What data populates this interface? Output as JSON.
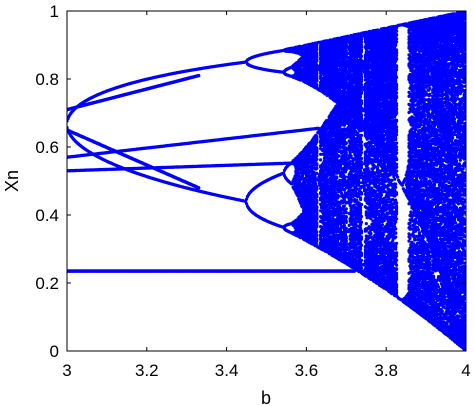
{
  "chart_data": {
    "type": "scatter",
    "title": "",
    "xlabel": "b",
    "ylabel": "Xn",
    "xlim": [
      3,
      4
    ],
    "ylim": [
      0,
      1
    ],
    "x_ticks": [
      3,
      3.2,
      3.4,
      3.6,
      3.8,
      4
    ],
    "x_tick_labels": [
      "3",
      "3.2",
      "3.4",
      "3.6",
      "3.8",
      "4"
    ],
    "y_ticks": [
      0,
      0.2,
      0.4,
      0.6,
      0.8,
      1
    ],
    "y_tick_labels": [
      "0",
      "0.2",
      "0.4",
      "0.6",
      "0.8",
      "1"
    ],
    "grid": false,
    "legend": "none",
    "marker_color": "#0000ff",
    "series": [
      {
        "values_description_none": true,
        "points": [
          [
            3.0,
            0.235
          ],
          [
            3.05,
            0.235
          ],
          [
            3.1,
            0.235
          ],
          [
            3.15,
            0.235
          ],
          [
            3.2,
            0.235
          ],
          [
            3.25,
            0.235
          ],
          [
            3.3,
            0.235
          ],
          [
            3.35,
            0.235
          ],
          [
            3.4,
            0.235
          ],
          [
            3.45,
            0.235
          ],
          [
            3.5,
            0.235
          ],
          [
            3.55,
            0.235
          ],
          [
            3.6,
            0.235
          ],
          [
            3.65,
            0.235
          ],
          [
            3.7,
            0.235
          ],
          [
            3.0,
            0.71
          ],
          [
            3.0,
            0.65
          ],
          [
            3.0,
            0.57
          ],
          [
            3.0,
            0.53
          ],
          [
            3.1,
            0.74
          ],
          [
            3.1,
            0.55
          ],
          [
            3.2,
            0.77
          ],
          [
            3.2,
            0.51
          ],
          [
            3.3,
            0.8
          ],
          [
            3.3,
            0.48
          ],
          [
            3.4,
            0.83
          ],
          [
            3.4,
            0.45
          ],
          [
            3.45,
            0.85
          ],
          [
            3.45,
            0.84
          ],
          [
            3.5,
            0.87
          ],
          [
            3.5,
            0.83
          ],
          [
            3.55,
            0.86
          ],
          [
            3.55,
            0.84
          ],
          [
            3.4,
            0.615
          ],
          [
            3.45,
            0.625
          ],
          [
            3.5,
            0.635
          ],
          [
            3.55,
            0.645
          ],
          [
            3.6,
            0.655
          ],
          [
            3.3,
            0.59
          ],
          [
            3.35,
            0.605
          ],
          [
            3.1,
            0.56
          ],
          [
            3.2,
            0.575
          ],
          [
            3.3,
            0.555
          ],
          [
            3.4,
            0.53
          ],
          [
            3.45,
            0.52
          ],
          [
            3.5,
            0.52
          ],
          [
            3.55,
            0.52
          ],
          [
            3.6,
            0.55
          ],
          [
            3.45,
            0.465
          ],
          [
            3.45,
            0.38
          ],
          [
            3.5,
            0.47
          ],
          [
            3.5,
            0.36
          ],
          [
            3.55,
            0.46
          ],
          [
            3.55,
            0.38
          ],
          [
            3.45,
            0.34
          ],
          [
            3.5,
            0.33
          ],
          [
            3.55,
            0.32
          ],
          [
            3.6,
            0.31
          ],
          [
            3.65,
            0.28
          ]
        ]
      }
    ]
  }
}
